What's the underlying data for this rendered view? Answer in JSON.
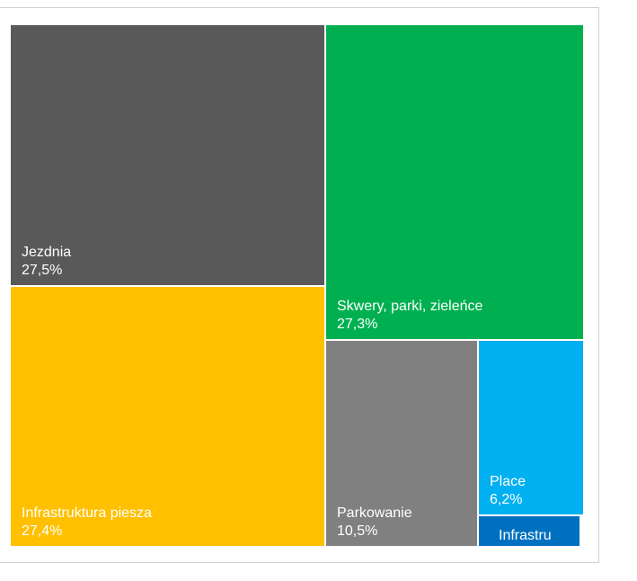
{
  "chart_data": {
    "type": "treemap",
    "title": "",
    "items": [
      {
        "name": "Jezdnia",
        "value_label": "27,5%",
        "value": 27.5,
        "color": "#595959"
      },
      {
        "name": "Infrastruktura piesza",
        "value_label": "27,4%",
        "value": 27.4,
        "color": "#FFC000"
      },
      {
        "name": "Skwery, parki, zieleńce",
        "value_label": "27,3%",
        "value": 27.3,
        "color": "#00B050"
      },
      {
        "name": "Parkowanie",
        "value_label": "10,5%",
        "value": 10.5,
        "color": "#808080"
      },
      {
        "name": "Place",
        "value_label": "6,2%",
        "value": 6.2,
        "color": "#00B0F0"
      },
      {
        "name": "Infrastru",
        "value_label": "",
        "value": 1.1,
        "color": "#0070C0"
      }
    ]
  }
}
